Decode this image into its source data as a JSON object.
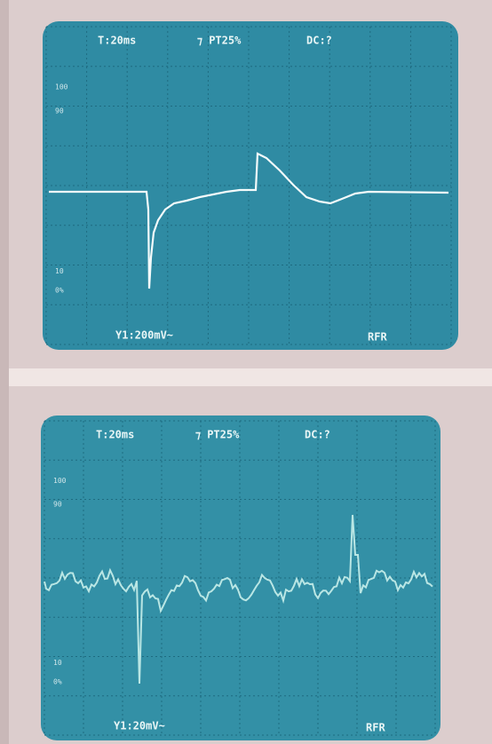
{
  "screens": [
    {
      "timebase": "T:20ms",
      "trigger": "⁊ PT25%",
      "coupling": "DC:?",
      "markers": [
        "100",
        "90",
        "10",
        "0%"
      ],
      "channel": "Y1:200mV~",
      "mode": "RFR"
    },
    {
      "timebase": "T:20ms",
      "trigger": "⁊ PT25%",
      "coupling": "DC:?",
      "markers": [
        "100",
        "90",
        "10",
        "0%"
      ],
      "channel": "Y1:20mV~",
      "mode": "RFR"
    }
  ]
}
